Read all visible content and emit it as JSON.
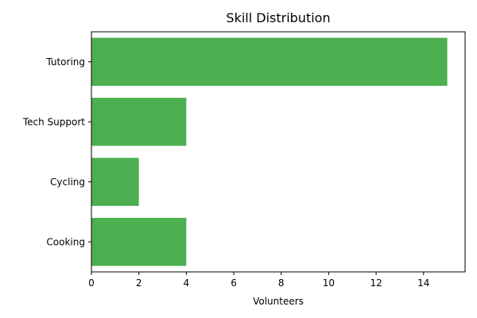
{
  "chart_data": {
    "type": "bar",
    "orientation": "horizontal",
    "title": "Skill Distribution",
    "xlabel": "Volunteers",
    "ylabel": "",
    "categories": [
      "Cooking",
      "Cycling",
      "Tech Support",
      "Tutoring"
    ],
    "values": [
      4,
      2,
      4,
      15
    ],
    "xlim": [
      0,
      15.75
    ],
    "xticks": [
      0,
      2,
      4,
      6,
      8,
      10,
      12,
      14
    ],
    "bar_color": "#4caf50",
    "grid": false,
    "legend": "none"
  }
}
